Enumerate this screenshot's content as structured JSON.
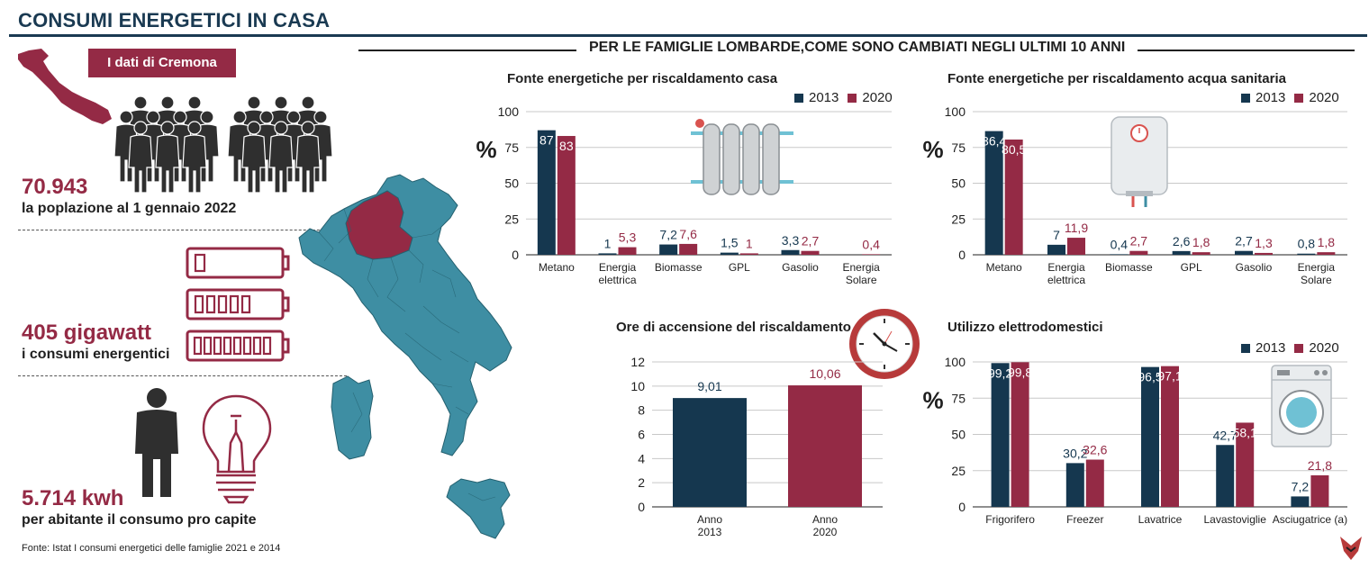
{
  "header": {
    "title": "CONSUMI ENERGETICI IN CASA",
    "subtitle": "PER LE FAMIGLIE LOMBARDE,COME SONO CAMBIATI NEGLI ULTIMI 10 ANNI",
    "badge": "I dati di Cremona"
  },
  "stats": [
    {
      "value": "70.943",
      "label": "la poplazione al 1 gennaio 2022"
    },
    {
      "value": "405 gigawatt",
      "label": "i consumi energentici"
    },
    {
      "value": "5.714 kwh",
      "label": "per abitante il consumo pro capite"
    }
  ],
  "source": "Fonte: Istat I consumi energetici delle famiglie 2021 e 2014",
  "colors": {
    "y2013": "#15374f",
    "y2020": "#942a45",
    "map": "#3e8ea3",
    "lombardia": "#942a45"
  },
  "icons": [
    "people-group-icon",
    "battery-icon",
    "person-icon",
    "lightbulb-icon",
    "radiator-icon",
    "water-heater-icon",
    "clock-icon",
    "washing-machine-icon",
    "italy-map",
    "logo-icon"
  ],
  "chart_data": [
    {
      "id": "riscaldamento",
      "type": "bar",
      "title": "Fonte energetiche per riscaldamento casa",
      "ylabel": "%",
      "ylim": [
        0,
        100
      ],
      "yticks": [
        "0",
        "25",
        "50",
        "75",
        "100"
      ],
      "categories": [
        [
          "Metano"
        ],
        [
          "Energia",
          "elettrica"
        ],
        [
          "Biomasse"
        ],
        [
          "GPL"
        ],
        [
          "Gasolio"
        ],
        [
          "Energia",
          "Solare"
        ]
      ],
      "legend": [
        "2013",
        "2020"
      ],
      "series": [
        {
          "name": "2013",
          "values": [
            87,
            1,
            7.2,
            1.5,
            3.3,
            0
          ],
          "labels": [
            "87",
            "1",
            "7,2",
            "1,5",
            "3,3",
            ""
          ]
        },
        {
          "name": "2020",
          "values": [
            83,
            5.3,
            7.6,
            1,
            2.7,
            0.4
          ],
          "labels": [
            "83",
            "5,3",
            "7,6",
            "1",
            "2,7",
            "0,4"
          ]
        }
      ]
    },
    {
      "id": "acqua",
      "type": "bar",
      "title": "Fonte energetiche per riscaldamento acqua sanitaria",
      "ylabel": "%",
      "ylim": [
        0,
        100
      ],
      "yticks": [
        "0",
        "25",
        "50",
        "75",
        "100"
      ],
      "categories": [
        [
          "Metano"
        ],
        [
          "Energia",
          "elettrica"
        ],
        [
          "Biomasse"
        ],
        [
          "GPL"
        ],
        [
          "Gasolio"
        ],
        [
          "Energia",
          "Solare"
        ]
      ],
      "legend": [
        "2013",
        "2020"
      ],
      "series": [
        {
          "name": "2013",
          "values": [
            86.4,
            7,
            0.4,
            2.6,
            2.7,
            0.8
          ],
          "labels": [
            "86,4",
            "7",
            "0,4",
            "2,6",
            "2,7",
            "0,8"
          ]
        },
        {
          "name": "2020",
          "values": [
            80.5,
            11.9,
            2.7,
            1.8,
            1.3,
            1.8
          ],
          "labels": [
            "80,5",
            "11,9",
            "2,7",
            "1,8",
            "1,3",
            "1,8"
          ]
        }
      ]
    },
    {
      "id": "ore",
      "type": "bar",
      "title": "Ore di accensione del riscaldamento",
      "ylim": [
        0,
        12
      ],
      "yticks": [
        "0",
        "2",
        "4",
        "6",
        "8",
        "10",
        "12"
      ],
      "categories": [
        [
          "Anno",
          "2013"
        ],
        [
          "Anno",
          "2020"
        ]
      ],
      "values": [
        9.01,
        10.06
      ],
      "labels": [
        "9,01",
        "10,06"
      ]
    },
    {
      "id": "elettrodomestici",
      "type": "bar",
      "title": "Utilizzo elettrodomestici",
      "ylabel": "%",
      "ylim": [
        0,
        100
      ],
      "yticks": [
        "0",
        "25",
        "50",
        "75",
        "100"
      ],
      "categories": [
        [
          "Frigorifero"
        ],
        [
          "Freezer"
        ],
        [
          "Lavatrice"
        ],
        [
          "Lavastoviglie"
        ],
        [
          "Asciugatrice (a)"
        ]
      ],
      "legend": [
        "2013",
        "2020"
      ],
      "series": [
        {
          "name": "2013",
          "values": [
            99.2,
            30.2,
            96.5,
            42.7,
            7.2
          ],
          "labels": [
            "99,2",
            "30,2",
            "96,5",
            "42,7",
            "7,2"
          ]
        },
        {
          "name": "2020",
          "values": [
            99.8,
            32.6,
            97.1,
            58.1,
            21.8
          ],
          "labels": [
            "99,8",
            "32,6",
            "97,1",
            "58,1",
            "21,8"
          ]
        }
      ]
    }
  ]
}
